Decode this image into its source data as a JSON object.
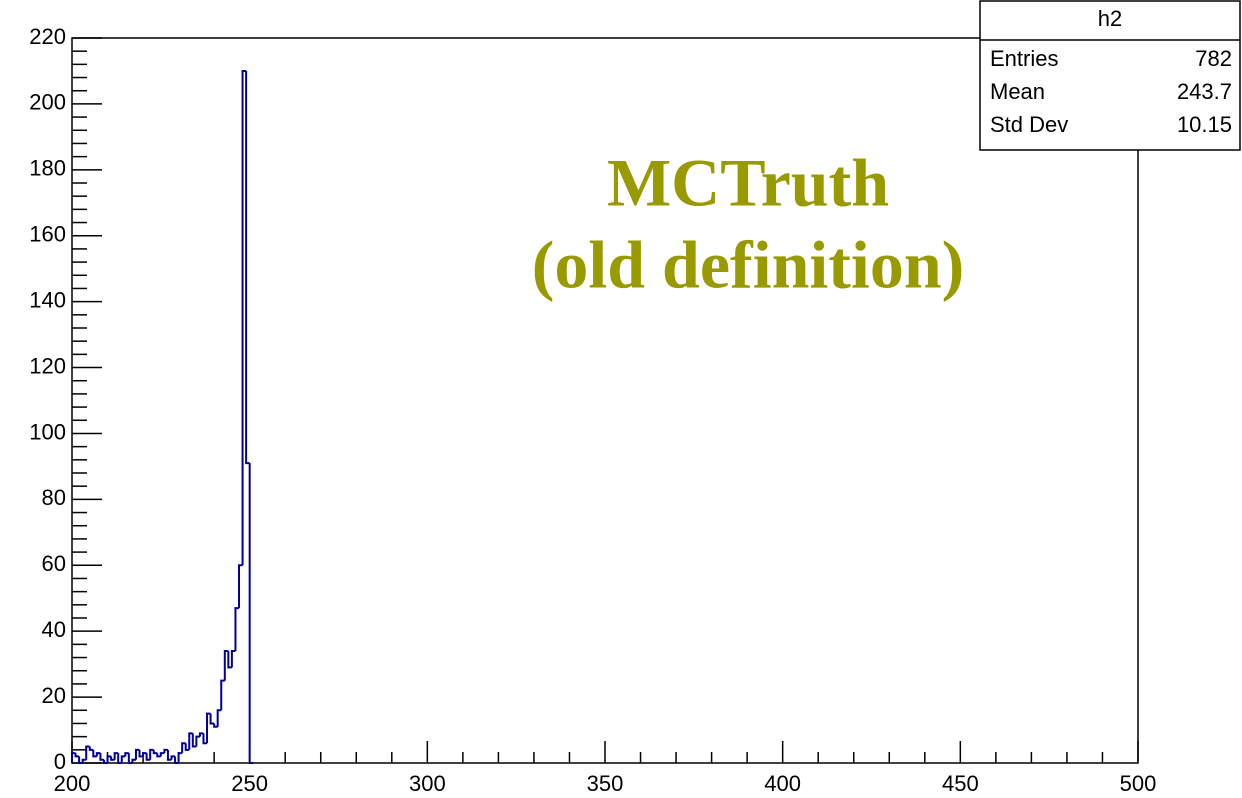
{
  "chart_data": {
    "type": "histogram",
    "series_name": "h2",
    "color": "#000099",
    "bins": [
      200,
      201,
      202,
      203,
      204,
      205,
      206,
      207,
      208,
      209,
      210,
      211,
      212,
      213,
      214,
      215,
      216,
      217,
      218,
      219,
      220,
      221,
      222,
      223,
      224,
      225,
      226,
      227,
      228,
      229,
      230,
      231,
      232,
      233,
      234,
      235,
      236,
      237,
      238,
      239,
      240,
      241,
      242,
      243,
      244,
      245,
      246,
      247,
      248,
      249,
      250,
      251
    ],
    "values": [
      3,
      2,
      0,
      1,
      5,
      4,
      2,
      3,
      1,
      0,
      2,
      1,
      3,
      0,
      2,
      3,
      0,
      1,
      4,
      2,
      3,
      1,
      4,
      3,
      2,
      3,
      4,
      1,
      2,
      0,
      3,
      6,
      4,
      9,
      5,
      8,
      9,
      6,
      15,
      12,
      11,
      16,
      25,
      34,
      29,
      34,
      47,
      60,
      210,
      91,
      0
    ],
    "xlim": [
      200,
      500
    ],
    "xticks": [
      200,
      250,
      300,
      350,
      400,
      450,
      500
    ],
    "ylim": [
      0,
      220
    ],
    "yticks": [
      0,
      20,
      40,
      60,
      80,
      100,
      120,
      140,
      160,
      180,
      200,
      220
    ],
    "annotations": [
      "MCTruth",
      "(old definition)"
    ],
    "stats": {
      "title": "h2",
      "rows": [
        {
          "label": "Entries",
          "value": 782
        },
        {
          "label": "Mean",
          "value": 243.7
        },
        {
          "label": "Std Dev",
          "value": 10.15
        }
      ]
    }
  }
}
